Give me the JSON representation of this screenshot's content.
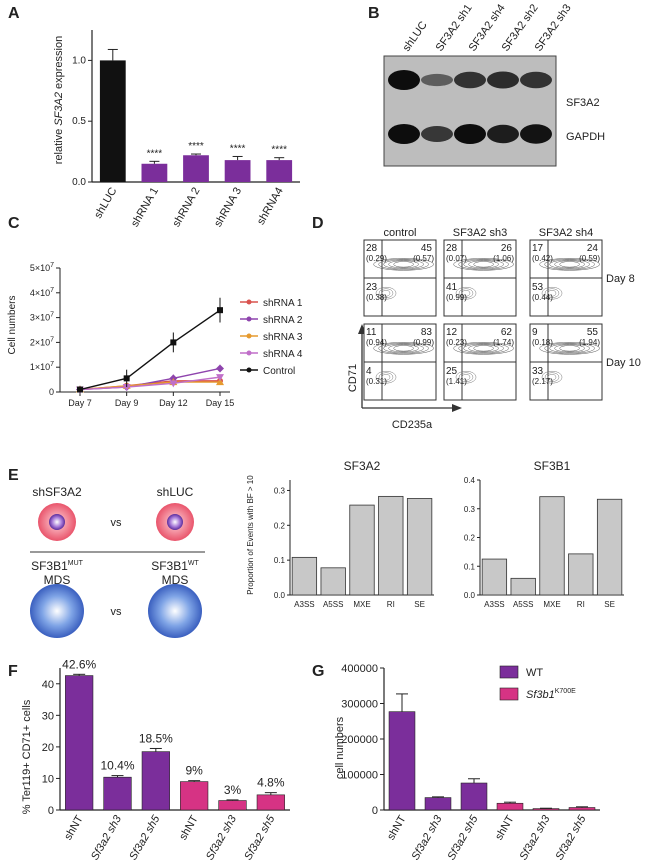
{
  "panels": [
    "A",
    "B",
    "C",
    "D",
    "E",
    "F",
    "G"
  ],
  "panelA": {
    "chart_data": {
      "type": "bar",
      "ylabel_pre": "relative ",
      "ylabel_em": "SF3A2",
      "ylabel_post": " expression",
      "ylim": [
        0,
        1.25
      ],
      "yticks": [
        "0.0",
        "0.5",
        "1.0"
      ],
      "ytick_values": [
        0,
        0.5,
        1.0
      ],
      "categories": [
        "shLUC",
        "shRNA 1",
        "shRNA 2",
        "shRNA 3",
        "shRNA4"
      ],
      "values": [
        1.0,
        0.15,
        0.22,
        0.18,
        0.18
      ],
      "errors": [
        0.09,
        0.02,
        0.01,
        0.03,
        0.02
      ],
      "annotations": [
        "",
        "****",
        "****",
        "****",
        "****"
      ],
      "colors": [
        "#111111",
        "#7b2e9b",
        "#7b2e9b",
        "#7b2e9b",
        "#7b2e9b"
      ]
    }
  },
  "panelB": {
    "lanes": [
      "shLUC",
      "SF3A2 sh1",
      "SF3A2 sh4",
      "SF3A2 sh2",
      "SF3A2 sh3"
    ],
    "bands": [
      "SF3A2",
      "GAPDH"
    ],
    "sf3a2_intensity": [
      1.0,
      0.35,
      0.7,
      0.75,
      0.7
    ],
    "gapdh_intensity": [
      1.0,
      0.6,
      1.0,
      0.85,
      0.95
    ]
  },
  "panelC": {
    "chart_data": {
      "type": "line",
      "ylabel": "Cell numbers",
      "ytick_base": [
        "0",
        "1×10",
        "2×10",
        "3×10",
        "4×10",
        "5×10"
      ],
      "ytick_exp": [
        "",
        "7",
        "7",
        "7",
        "7",
        "7"
      ],
      "ytick_values": [
        0,
        1,
        2,
        3,
        4,
        5
      ],
      "ylim": [
        0,
        5
      ],
      "categories": [
        "Day 7",
        "Day 9",
        "Day 12",
        "Day 15"
      ],
      "series": [
        {
          "name": "shRNA 1",
          "color": "#d9534f",
          "marker": "circle",
          "values": [
            0.1,
            0.25,
            0.45,
            0.45
          ],
          "err": [
            0.05,
            0.1,
            0.15,
            0.15
          ]
        },
        {
          "name": "shRNA 2",
          "color": "#8e44ad",
          "marker": "diamond",
          "values": [
            0.1,
            0.2,
            0.55,
            0.95
          ],
          "err": [
            0.05,
            0.1,
            0.15,
            0.15
          ]
        },
        {
          "name": "shRNA 3",
          "color": "#e69a2e",
          "marker": "triangle",
          "values": [
            0.1,
            0.25,
            0.4,
            0.4
          ],
          "err": [
            0.05,
            0.1,
            0.1,
            0.1
          ]
        },
        {
          "name": "shRNA 4",
          "color": "#c06fc9",
          "marker": "tri-down",
          "values": [
            0.1,
            0.2,
            0.35,
            0.6
          ],
          "err": [
            0.05,
            0.1,
            0.1,
            0.1
          ]
        },
        {
          "name": "Control",
          "color": "#111111",
          "marker": "square",
          "values": [
            0.1,
            0.55,
            2.0,
            3.3
          ],
          "err": [
            0.05,
            0.35,
            0.4,
            0.5
          ]
        }
      ]
    }
  },
  "panelD": {
    "columns": [
      "control",
      "SF3A2 sh3",
      "SF3A2 sh4"
    ],
    "days": [
      "Day 8",
      "Day 10"
    ],
    "xaxis": "CD235a",
    "yaxis": "CD71",
    "quadrants": [
      [
        {
          "tl": "28",
          "tlp": "(0.29)",
          "tr": "45",
          "trp": "(0.57)",
          "bl": "23",
          "blp": "(0.38)"
        },
        {
          "tl": "28",
          "tlp": "(0.07)",
          "tr": "26",
          "trp": "(1.06)",
          "bl": "41",
          "blp": "(0.99)"
        },
        {
          "tl": "17",
          "tlp": "(0.42)",
          "tr": "24",
          "trp": "(0.59)",
          "bl": "53",
          "blp": "(0.44)"
        }
      ],
      [
        {
          "tl": "11",
          "tlp": "(0.94)",
          "tr": "83",
          "trp": "(0.99)",
          "bl": "4",
          "blp": "(0.31)"
        },
        {
          "tl": "12",
          "tlp": "(0.23)",
          "tr": "62",
          "trp": "(1.74)",
          "bl": "25",
          "blp": "(1.41)"
        },
        {
          "tl": "9",
          "tlp": "(0.18)",
          "tr": "55",
          "trp": "(1.94)",
          "bl": "33",
          "blp": "(2.17)"
        }
      ]
    ]
  },
  "panelE": {
    "schema": {
      "top_left": "shSF3A2",
      "top_right": "shLUC",
      "vs": "vs",
      "bl_name": "SF3B1",
      "bl_sup": "MUT",
      "br_name": "SF3B1",
      "br_sup": "WT",
      "mds": "MDS"
    },
    "ylabel": "Proportion of Events with BF > 10",
    "chart_data": [
      {
        "type": "bar",
        "title": "SF3A2",
        "categories": [
          "A3SS",
          "A5SS",
          "MXE",
          "RI",
          "SE"
        ],
        "values": [
          0.108,
          0.078,
          0.258,
          0.283,
          0.277
        ],
        "ylim": [
          0,
          0.33
        ],
        "yticks": [
          "0.0",
          "0.1",
          "0.2",
          "0.3"
        ],
        "ytick_values": [
          0,
          0.1,
          0.2,
          0.3
        ]
      },
      {
        "type": "bar",
        "title": "SF3B1",
        "categories": [
          "A3SS",
          "A5SS",
          "MXE",
          "RI",
          "SE"
        ],
        "values": [
          0.125,
          0.058,
          0.342,
          0.143,
          0.333
        ],
        "ylim": [
          0,
          0.4
        ],
        "yticks": [
          "0.0",
          "0.1",
          "0.2",
          "0.3",
          "0.4"
        ],
        "ytick_values": [
          0,
          0.1,
          0.2,
          0.3,
          0.4
        ]
      }
    ]
  },
  "panelF": {
    "chart_data": {
      "type": "bar",
      "ylabel": "% Ter119+ CD71+ cells",
      "ylim": [
        0,
        45
      ],
      "yticks": [
        "0",
        "10",
        "20",
        "30",
        "40"
      ],
      "ytick_values": [
        0,
        10,
        20,
        30,
        40
      ],
      "categories": [
        "shNT",
        "Sf3a2 sh3",
        "Sf3a2 sh5",
        "shNT",
        "Sf3a2 sh3",
        "Sf3a2 sh5"
      ],
      "cat_italic": [
        false,
        true,
        true,
        false,
        true,
        true
      ],
      "values": [
        42.6,
        10.4,
        18.5,
        9.0,
        3.0,
        4.8
      ],
      "errors": [
        0.4,
        0.5,
        1.0,
        0.3,
        0.2,
        0.7
      ],
      "labels": [
        "42.6%",
        "10.4%",
        "18.5%",
        "9%",
        "3%",
        "4.8%"
      ],
      "colors": [
        "#7b2e9b",
        "#7b2e9b",
        "#7b2e9b",
        "#d63384",
        "#d63384",
        "#d63384"
      ]
    }
  },
  "panelG": {
    "legend": [
      {
        "name": "WT",
        "sup": "",
        "italic": false,
        "color": "#7b2e9b"
      },
      {
        "name": "Sf3b1",
        "sup": "K700E",
        "italic": true,
        "color": "#d63384"
      }
    ],
    "chart_data": {
      "type": "bar",
      "ylabel": "cell numbers",
      "ylim": [
        0,
        400000
      ],
      "yticks": [
        "0",
        "100000",
        "200000",
        "300000",
        "400000"
      ],
      "ytick_values": [
        0,
        100000,
        200000,
        300000,
        400000
      ],
      "categories": [
        "shNT",
        "Sf3a2 sh3",
        "Sf3a2 sh5",
        "shNT",
        "Sf3a2 sh3",
        "Sf3a2 sh5"
      ],
      "cat_italic": [
        false,
        true,
        true,
        false,
        true,
        true
      ],
      "values": [
        277000,
        35000,
        76000,
        19000,
        4000,
        7000
      ],
      "errors": [
        50000,
        2000,
        12000,
        3000,
        1000,
        2000
      ],
      "colors": [
        "#7b2e9b",
        "#7b2e9b",
        "#7b2e9b",
        "#d63384",
        "#d63384",
        "#d63384"
      ]
    }
  }
}
